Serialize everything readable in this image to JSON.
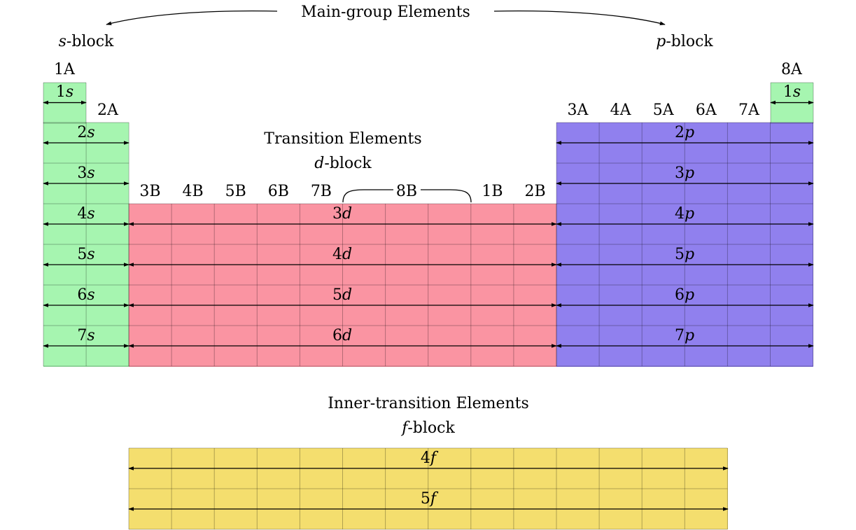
{
  "main_group": {
    "label": "Main-group Elements"
  },
  "s_block": {
    "prefix": "s",
    "suffix": "-block"
  },
  "p_block": {
    "prefix": "p",
    "suffix": "-block"
  },
  "transition": {
    "title": "Transition Elements",
    "prefix": "d",
    "suffix": "-block"
  },
  "inner_transition": {
    "title": "Inner-transition Elements",
    "prefix": "f",
    "suffix": "-block"
  },
  "group_labels": {
    "g1": "1A",
    "g2": "2A",
    "g18": "8A",
    "p_groups": [
      "3A",
      "4A",
      "5A",
      "6A",
      "7A"
    ],
    "d_groups": [
      "3B",
      "4B",
      "5B",
      "6B",
      "7B"
    ],
    "g8b": "8B",
    "d_groups_right": [
      "1B",
      "2B"
    ]
  },
  "orbitals": {
    "s": [
      {
        "n": "1",
        "l": "s"
      },
      {
        "n": "2",
        "l": "s"
      },
      {
        "n": "3",
        "l": "s"
      },
      {
        "n": "4",
        "l": "s"
      },
      {
        "n": "5",
        "l": "s"
      },
      {
        "n": "6",
        "l": "s"
      },
      {
        "n": "7",
        "l": "s"
      }
    ],
    "he": {
      "n": "1",
      "l": "s"
    },
    "p": [
      {
        "n": "2",
        "l": "p"
      },
      {
        "n": "3",
        "l": "p"
      },
      {
        "n": "4",
        "l": "p"
      },
      {
        "n": "5",
        "l": "p"
      },
      {
        "n": "6",
        "l": "p"
      },
      {
        "n": "7",
        "l": "p"
      }
    ],
    "d": [
      {
        "n": "3",
        "l": "d"
      },
      {
        "n": "4",
        "l": "d"
      },
      {
        "n": "5",
        "l": "d"
      },
      {
        "n": "6",
        "l": "d"
      }
    ],
    "f": [
      {
        "n": "4",
        "l": "f"
      },
      {
        "n": "5",
        "l": "f"
      }
    ]
  },
  "colors": {
    "s_block": "#a6f5b0",
    "p_block": "#9080ee",
    "d_block": "#fa94a2",
    "f_block": "#f4de6e"
  }
}
